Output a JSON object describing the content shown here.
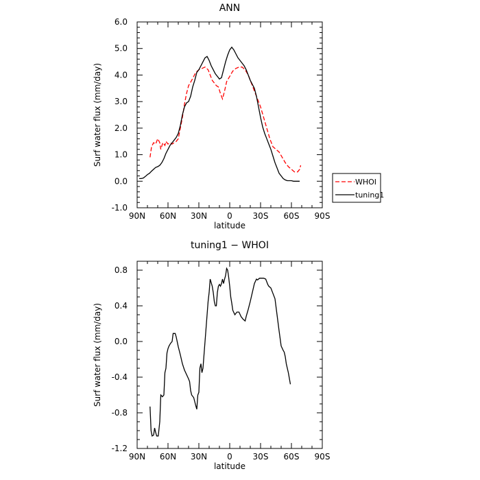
{
  "chart_data": [
    {
      "type": "line",
      "title": "ANN",
      "xlabel": "latitude",
      "ylabel": "Surf water flux (mm/day)",
      "xlim": [
        90,
        -90
      ],
      "ylim": [
        -1.0,
        6.0
      ],
      "x_ticks": [
        {
          "value": 90,
          "label": "90N"
        },
        {
          "value": 60,
          "label": "60N"
        },
        {
          "value": 30,
          "label": "30N"
        },
        {
          "value": 0,
          "label": "0"
        },
        {
          "value": -30,
          "label": "30S"
        },
        {
          "value": -60,
          "label": "60S"
        },
        {
          "value": -90,
          "label": "90S"
        }
      ],
      "y_ticks": [
        {
          "value": 6.0,
          "label": "6.0"
        },
        {
          "value": 5.0,
          "label": "5.0"
        },
        {
          "value": 4.0,
          "label": "4.0"
        },
        {
          "value": 3.0,
          "label": "3.0"
        },
        {
          "value": 2.0,
          "label": "2.0"
        },
        {
          "value": 1.0,
          "label": "1.0"
        },
        {
          "value": 0.0,
          "label": "0.0"
        },
        {
          "value": -1.0,
          "label": "-1.0"
        }
      ],
      "legend": "right",
      "series": [
        {
          "name": "WHOI",
          "color": "#ff0000",
          "dashed": true,
          "points": [
            [
              77.5,
              0.9
            ],
            [
              76,
              1.3
            ],
            [
              74,
              1.45
            ],
            [
              72,
              1.4
            ],
            [
              70,
              1.6
            ],
            [
              68,
              1.45
            ],
            [
              67,
              1.2
            ],
            [
              65,
              1.45
            ],
            [
              63,
              1.35
            ],
            [
              62,
              1.5
            ],
            [
              60,
              1.4
            ],
            [
              58,
              1.45
            ],
            [
              56,
              1.4
            ],
            [
              54,
              1.45
            ],
            [
              52,
              1.5
            ],
            [
              50,
              1.6
            ],
            [
              48,
              2.0
            ],
            [
              46,
              2.4
            ],
            [
              44,
              2.9
            ],
            [
              42,
              3.3
            ],
            [
              40,
              3.6
            ],
            [
              37,
              3.8
            ],
            [
              35,
              3.95
            ],
            [
              33,
              4.1
            ],
            [
              30,
              4.2
            ],
            [
              27,
              4.25
            ],
            [
              24,
              4.3
            ],
            [
              21,
              4.2
            ],
            [
              19,
              4.0
            ],
            [
              17,
              3.8
            ],
            [
              15,
              3.7
            ],
            [
              13,
              3.6
            ],
            [
              11,
              3.55
            ],
            [
              9,
              3.3
            ],
            [
              7,
              3.1
            ],
            [
              5,
              3.4
            ],
            [
              3,
              3.75
            ],
            [
              0,
              3.95
            ],
            [
              -3,
              4.15
            ],
            [
              -6,
              4.25
            ],
            [
              -9,
              4.3
            ],
            [
              -12,
              4.3
            ],
            [
              -15,
              4.2
            ],
            [
              -18,
              4.0
            ],
            [
              -21,
              3.7
            ],
            [
              -24,
              3.4
            ],
            [
              -27,
              3.1
            ],
            [
              -30,
              2.8
            ],
            [
              -33,
              2.4
            ],
            [
              -36,
              2.0
            ],
            [
              -39,
              1.6
            ],
            [
              -42,
              1.3
            ],
            [
              -45,
              1.2
            ],
            [
              -48,
              1.1
            ],
            [
              -51,
              0.9
            ],
            [
              -54,
              0.7
            ],
            [
              -57,
              0.55
            ],
            [
              -60,
              0.45
            ],
            [
              -63,
              0.35
            ],
            [
              -66,
              0.35
            ],
            [
              -68,
              0.45
            ],
            [
              -69,
              0.6
            ]
          ]
        },
        {
          "name": "tuning1",
          "color": "#000000",
          "dashed": false,
          "points": [
            [
              88,
              0.1
            ],
            [
              86,
              0.1
            ],
            [
              84,
              0.12
            ],
            [
              82,
              0.18
            ],
            [
              80,
              0.25
            ],
            [
              78,
              0.3
            ],
            [
              76,
              0.38
            ],
            [
              74,
              0.45
            ],
            [
              72,
              0.52
            ],
            [
              70,
              0.55
            ],
            [
              68,
              0.6
            ],
            [
              66,
              0.7
            ],
            [
              64,
              0.85
            ],
            [
              62,
              1.05
            ],
            [
              60,
              1.2
            ],
            [
              58,
              1.35
            ],
            [
              56,
              1.45
            ],
            [
              54,
              1.55
            ],
            [
              52,
              1.65
            ],
            [
              50,
              1.8
            ],
            [
              48,
              2.1
            ],
            [
              46,
              2.5
            ],
            [
              44,
              2.8
            ],
            [
              42,
              2.95
            ],
            [
              40,
              3.0
            ],
            [
              38,
              3.2
            ],
            [
              36,
              3.55
            ],
            [
              34,
              3.8
            ],
            [
              32,
              4.1
            ],
            [
              30,
              4.2
            ],
            [
              28,
              4.35
            ],
            [
              26,
              4.5
            ],
            [
              24,
              4.65
            ],
            [
              22,
              4.7
            ],
            [
              20,
              4.55
            ],
            [
              18,
              4.35
            ],
            [
              16,
              4.2
            ],
            [
              14,
              4.05
            ],
            [
              12,
              3.95
            ],
            [
              10,
              3.85
            ],
            [
              8,
              3.9
            ],
            [
              6,
              4.2
            ],
            [
              4,
              4.5
            ],
            [
              2,
              4.75
            ],
            [
              0,
              4.95
            ],
            [
              -2,
              5.05
            ],
            [
              -4,
              4.95
            ],
            [
              -6,
              4.8
            ],
            [
              -8,
              4.65
            ],
            [
              -10,
              4.55
            ],
            [
              -12,
              4.45
            ],
            [
              -14,
              4.35
            ],
            [
              -16,
              4.2
            ],
            [
              -18,
              4.0
            ],
            [
              -20,
              3.8
            ],
            [
              -22,
              3.65
            ],
            [
              -24,
              3.5
            ],
            [
              -26,
              3.2
            ],
            [
              -28,
              2.8
            ],
            [
              -30,
              2.4
            ],
            [
              -32,
              2.05
            ],
            [
              -34,
              1.8
            ],
            [
              -36,
              1.6
            ],
            [
              -38,
              1.4
            ],
            [
              -40,
              1.2
            ],
            [
              -42,
              0.95
            ],
            [
              -44,
              0.7
            ],
            [
              -46,
              0.5
            ],
            [
              -48,
              0.3
            ],
            [
              -50,
              0.2
            ],
            [
              -52,
              0.1
            ],
            [
              -54,
              0.05
            ],
            [
              -56,
              0.02
            ],
            [
              -58,
              0.02
            ],
            [
              -60,
              0.02
            ],
            [
              -62,
              0.0
            ],
            [
              -64,
              0.0
            ],
            [
              -66,
              0.0
            ],
            [
              -68,
              0.0
            ]
          ]
        }
      ]
    },
    {
      "type": "line",
      "title": "tuning1 − WHOI",
      "xlabel": "latitude",
      "ylabel": "Surf water flux (mm/day)",
      "xlim": [
        90,
        -90
      ],
      "ylim": [
        -1.2,
        0.9
      ],
      "x_ticks": [
        {
          "value": 90,
          "label": "90N"
        },
        {
          "value": 60,
          "label": "60N"
        },
        {
          "value": 30,
          "label": "30N"
        },
        {
          "value": 0,
          "label": "0"
        },
        {
          "value": -30,
          "label": "30S"
        },
        {
          "value": -60,
          "label": "60S"
        },
        {
          "value": -90,
          "label": "90S"
        }
      ],
      "y_ticks": [
        {
          "value": 0.8,
          "label": "0.8"
        },
        {
          "value": 0.4,
          "label": "0.4"
        },
        {
          "value": 0.0,
          "label": "0.0"
        },
        {
          "value": -0.4,
          "label": "-0.4"
        },
        {
          "value": -0.8,
          "label": "-0.8"
        },
        {
          "value": -1.2,
          "label": "-1.2"
        }
      ],
      "series": [
        {
          "name": "",
          "color": "#000000",
          "dashed": false,
          "points": [
            [
              77.5,
              -0.73
            ],
            [
              76.5,
              -1.0
            ],
            [
              75.5,
              -1.06
            ],
            [
              74,
              -1.05
            ],
            [
              73,
              -0.97
            ],
            [
              72,
              -1.02
            ],
            [
              71,
              -1.06
            ],
            [
              69.5,
              -1.06
            ],
            [
              68,
              -0.9
            ],
            [
              67,
              -0.6
            ],
            [
              65.5,
              -0.62
            ],
            [
              64,
              -0.6
            ],
            [
              63,
              -0.35
            ],
            [
              62,
              -0.3
            ],
            [
              61,
              -0.13
            ],
            [
              60,
              -0.08
            ],
            [
              59,
              -0.05
            ],
            [
              57.5,
              -0.02
            ],
            [
              56,
              0.0
            ],
            [
              55,
              0.09
            ],
            [
              53,
              0.09
            ],
            [
              52,
              0.05
            ],
            [
              50,
              -0.06
            ],
            [
              48,
              -0.15
            ],
            [
              46,
              -0.25
            ],
            [
              44,
              -0.32
            ],
            [
              42,
              -0.37
            ],
            [
              40,
              -0.42
            ],
            [
              39,
              -0.45
            ],
            [
              38,
              -0.55
            ],
            [
              37,
              -0.6
            ],
            [
              35,
              -0.63
            ],
            [
              33,
              -0.72
            ],
            [
              32,
              -0.76
            ],
            [
              31,
              -0.6
            ],
            [
              30,
              -0.57
            ],
            [
              29,
              -0.3
            ],
            [
              28,
              -0.25
            ],
            [
              27,
              -0.35
            ],
            [
              26,
              -0.3
            ],
            [
              25,
              -0.15
            ],
            [
              24,
              0.0
            ],
            [
              23,
              0.15
            ],
            [
              22,
              0.3
            ],
            [
              21,
              0.45
            ],
            [
              20,
              0.55
            ],
            [
              19,
              0.7
            ],
            [
              17,
              0.62
            ],
            [
              16,
              0.55
            ],
            [
              15,
              0.45
            ],
            [
              14,
              0.4
            ],
            [
              13,
              0.4
            ],
            [
              12,
              0.55
            ],
            [
              11,
              0.62
            ],
            [
              10,
              0.64
            ],
            [
              9,
              0.62
            ],
            [
              8,
              0.65
            ],
            [
              7,
              0.7
            ],
            [
              6,
              0.65
            ],
            [
              5,
              0.7
            ],
            [
              4,
              0.74
            ],
            [
              3,
              0.82
            ],
            [
              2,
              0.8
            ],
            [
              1,
              0.72
            ],
            [
              0,
              0.62
            ],
            [
              -1,
              0.5
            ],
            [
              -2,
              0.43
            ],
            [
              -3,
              0.35
            ],
            [
              -5,
              0.3
            ],
            [
              -7,
              0.33
            ],
            [
              -9,
              0.33
            ],
            [
              -11,
              0.28
            ],
            [
              -13,
              0.25
            ],
            [
              -15,
              0.23
            ],
            [
              -16,
              0.28
            ],
            [
              -18,
              0.36
            ],
            [
              -20,
              0.45
            ],
            [
              -22,
              0.55
            ],
            [
              -24,
              0.65
            ],
            [
              -26,
              0.7
            ],
            [
              -27,
              0.69
            ],
            [
              -29,
              0.71
            ],
            [
              -31,
              0.71
            ],
            [
              -33,
              0.71
            ],
            [
              -35,
              0.7
            ],
            [
              -37,
              0.64
            ],
            [
              -38,
              0.62
            ],
            [
              -40,
              0.6
            ],
            [
              -42,
              0.54
            ],
            [
              -44,
              0.48
            ],
            [
              -46,
              0.3
            ],
            [
              -48,
              0.12
            ],
            [
              -50,
              -0.05
            ],
            [
              -52,
              -0.1
            ],
            [
              -53,
              -0.12
            ],
            [
              -54,
              -0.17
            ],
            [
              -55,
              -0.25
            ],
            [
              -57,
              -0.35
            ],
            [
              -59,
              -0.48
            ]
          ]
        }
      ]
    }
  ]
}
